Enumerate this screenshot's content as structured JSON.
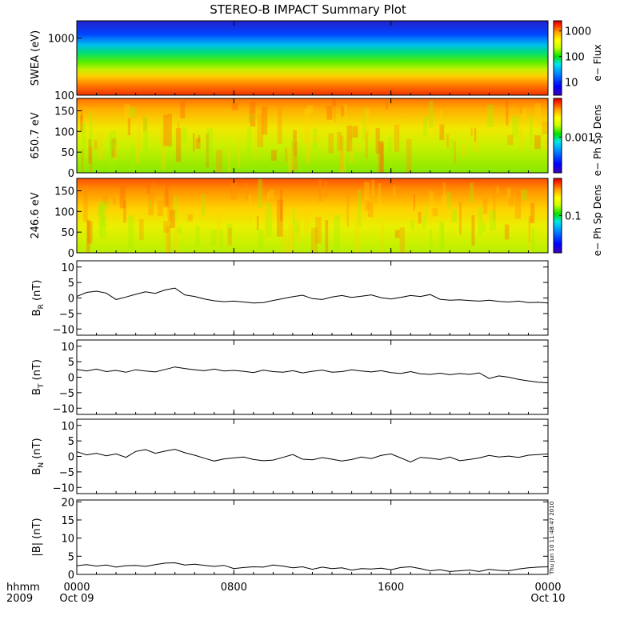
{
  "title": "STEREO-B IMPACT Summary Plot",
  "x_axis": {
    "row1_label": "hhmm",
    "row2_label": "2009",
    "ticks": [
      {
        "hhmm": "0000",
        "date": "Oct 09",
        "hour": 0
      },
      {
        "hhmm": "0800",
        "date": "",
        "hour": 8
      },
      {
        "hhmm": "1600",
        "date": "",
        "hour": 16
      },
      {
        "hhmm": "0000",
        "date": "Oct 10",
        "hour": 24
      }
    ]
  },
  "timestamp": "Thu Jun 10 11:48:47 2010",
  "chart_data": [
    {
      "type": "heatmap",
      "ylabel": "SWEA (eV)",
      "yscale": "log",
      "ylim": [
        100,
        2000
      ],
      "yticks": [
        "100",
        "1000"
      ],
      "colorbar_label": "e− Flux",
      "colorbar_ticks": [
        "10",
        "100",
        "1000"
      ],
      "colorbar_scale": "log",
      "colorbar_range": [
        3,
        2500
      ],
      "energy_profile": [
        {
          "energy": 100,
          "color": "#ee3300"
        },
        {
          "energy": 150,
          "color": "#ff7700"
        },
        {
          "energy": 220,
          "color": "#ffcc00"
        },
        {
          "energy": 300,
          "color": "#ccee00"
        },
        {
          "energy": 450,
          "color": "#55ee00"
        },
        {
          "energy": 650,
          "color": "#00dd77"
        },
        {
          "energy": 900,
          "color": "#00bbee"
        },
        {
          "energy": 1300,
          "color": "#0044ff"
        },
        {
          "energy": 2000,
          "color": "#2222cc"
        }
      ]
    },
    {
      "type": "heatmap",
      "ylabel": "650.7 eV",
      "ylim": [
        0,
        180
      ],
      "yticks": [
        "0",
        "50",
        "100",
        "150"
      ],
      "colorbar_label": "e− Ph Sp Dens",
      "colorbar_ticks": [
        "0.001"
      ],
      "colorbar_scale": "log"
    },
    {
      "type": "heatmap",
      "ylabel": "246.6 eV",
      "ylim": [
        0,
        180
      ],
      "yticks": [
        "0",
        "50",
        "100",
        "150"
      ],
      "colorbar_label": "e− Ph Sp Dens",
      "colorbar_ticks": [
        "0.1"
      ],
      "colorbar_scale": "log"
    },
    {
      "type": "line",
      "ylabel": "B_R (nT)",
      "ylabel_main": "B",
      "ylabel_sub": "R",
      "ylabel_unit": " (nT)",
      "ylim": [
        -12,
        12
      ],
      "yticks": [
        "−10",
        "−5",
        "0",
        "5",
        "10"
      ],
      "x": [
        0,
        0.5,
        1,
        1.5,
        2,
        2.5,
        3,
        3.5,
        4,
        4.5,
        5,
        5.5,
        6,
        6.5,
        7,
        7.5,
        8,
        8.5,
        9,
        9.5,
        10,
        10.5,
        11,
        11.5,
        12,
        12.5,
        13,
        13.5,
        14,
        14.5,
        15,
        15.5,
        16,
        16.5,
        17,
        17.5,
        18,
        18.5,
        19,
        19.5,
        20,
        20.5,
        21,
        21.5,
        22,
        22.5,
        23,
        23.5,
        24
      ],
      "values": [
        0.5,
        1.8,
        2.2,
        1.6,
        -0.5,
        0.3,
        1.2,
        2.0,
        1.5,
        2.6,
        3.2,
        1.0,
        0.5,
        -0.3,
        -0.9,
        -1.2,
        -1.0,
        -1.3,
        -1.6,
        -1.5,
        -0.8,
        -0.2,
        0.4,
        0.9,
        -0.2,
        -0.5,
        0.3,
        0.8,
        0.2,
        0.6,
        1.0,
        0.1,
        -0.3,
        0.2,
        0.8,
        0.5,
        1.1,
        -0.4,
        -0.7,
        -0.6,
        -0.8,
        -1.0,
        -0.7,
        -1.1,
        -1.3,
        -1.0,
        -1.5,
        -1.4,
        -1.6
      ]
    },
    {
      "type": "line",
      "ylabel": "B_T (nT)",
      "ylabel_main": "B",
      "ylabel_sub": "T",
      "ylabel_unit": " (nT)",
      "ylim": [
        -12,
        12
      ],
      "yticks": [
        "−10",
        "−5",
        "0",
        "5",
        "10"
      ],
      "x": [
        0,
        0.5,
        1,
        1.5,
        2,
        2.5,
        3,
        3.5,
        4,
        4.5,
        5,
        5.5,
        6,
        6.5,
        7,
        7.5,
        8,
        8.5,
        9,
        9.5,
        10,
        10.5,
        11,
        11.5,
        12,
        12.5,
        13,
        13.5,
        14,
        14.5,
        15,
        15.5,
        16,
        16.5,
        17,
        17.5,
        18,
        18.5,
        19,
        19.5,
        20,
        20.5,
        21,
        21.5,
        22,
        22.5,
        23,
        23.5,
        24
      ],
      "values": [
        2.5,
        2.0,
        2.6,
        1.8,
        2.2,
        1.6,
        2.4,
        2.0,
        1.7,
        2.5,
        3.3,
        2.8,
        2.4,
        2.1,
        2.6,
        2.0,
        2.2,
        1.9,
        1.5,
        2.3,
        1.8,
        1.6,
        2.1,
        1.4,
        1.9,
        2.3,
        1.6,
        1.8,
        2.4,
        2.0,
        1.7,
        2.1,
        1.5,
        1.2,
        1.8,
        1.1,
        0.9,
        1.3,
        0.8,
        1.2,
        0.9,
        1.4,
        -0.4,
        0.4,
        0.0,
        -0.7,
        -1.2,
        -1.6,
        -1.8
      ]
    },
    {
      "type": "line",
      "ylabel": "B_N (nT)",
      "ylabel_main": "B",
      "ylabel_sub": "N",
      "ylabel_unit": " (nT)",
      "ylim": [
        -12,
        12
      ],
      "yticks": [
        "−10",
        "−5",
        "0",
        "5",
        "10"
      ],
      "x": [
        0,
        0.5,
        1,
        1.5,
        2,
        2.5,
        3,
        3.5,
        4,
        4.5,
        5,
        5.5,
        6,
        6.5,
        7,
        7.5,
        8,
        8.5,
        9,
        9.5,
        10,
        10.5,
        11,
        11.5,
        12,
        12.5,
        13,
        13.5,
        14,
        14.5,
        15,
        15.5,
        16,
        16.5,
        17,
        17.5,
        18,
        18.5,
        19,
        19.5,
        20,
        20.5,
        21,
        21.5,
        22,
        22.5,
        23,
        23.5,
        24
      ],
      "values": [
        1.5,
        0.5,
        1.0,
        0.2,
        0.8,
        -0.3,
        1.6,
        2.2,
        1.0,
        1.7,
        2.3,
        1.2,
        0.4,
        -0.6,
        -1.5,
        -0.8,
        -0.5,
        -0.2,
        -1.0,
        -1.4,
        -1.2,
        -0.3,
        0.6,
        -0.9,
        -1.1,
        -0.4,
        -0.9,
        -1.5,
        -1.0,
        -0.2,
        -0.7,
        0.3,
        0.8,
        -0.5,
        -1.8,
        -0.3,
        -0.6,
        -1.0,
        -0.2,
        -1.4,
        -1.0,
        -0.5,
        0.3,
        -0.2,
        0.1,
        -0.3,
        0.4,
        0.6,
        0.8
      ]
    },
    {
      "type": "line",
      "ylabel": "|B| (nT)",
      "ylim": [
        0,
        20.5
      ],
      "yticks": [
        "0",
        "5",
        "10",
        "15",
        "20"
      ],
      "x": [
        0,
        0.5,
        1,
        1.5,
        2,
        2.5,
        3,
        3.5,
        4,
        4.5,
        5,
        5.5,
        6,
        6.5,
        7,
        7.5,
        8,
        8.5,
        9,
        9.5,
        10,
        10.5,
        11,
        11.5,
        12,
        12.5,
        13,
        13.5,
        14,
        14.5,
        15,
        15.5,
        16,
        16.5,
        17,
        17.5,
        18,
        18.5,
        19,
        19.5,
        20,
        20.5,
        21,
        21.5,
        22,
        22.5,
        23,
        23.5,
        24
      ],
      "values": [
        2.4,
        2.7,
        2.3,
        2.6,
        2.0,
        2.4,
        2.5,
        2.2,
        2.7,
        3.1,
        3.2,
        2.6,
        2.8,
        2.5,
        2.2,
        2.5,
        1.6,
        1.9,
        2.1,
        2.0,
        2.6,
        2.3,
        1.8,
        2.1,
        1.4,
        2.0,
        1.6,
        1.8,
        1.2,
        1.6,
        1.5,
        1.7,
        1.3,
        1.9,
        2.1,
        1.6,
        1.0,
        1.3,
        0.8,
        1.0,
        1.2,
        0.8,
        1.4,
        1.1,
        1.0,
        1.5,
        1.8,
        2.0,
        2.1
      ]
    }
  ],
  "colors": {
    "jet": [
      "#3b00b8",
      "#0000ff",
      "#0090ff",
      "#00e8e8",
      "#00e000",
      "#c8ff00",
      "#ffff00",
      "#ffa000",
      "#ff2000",
      "#d00000"
    ]
  }
}
